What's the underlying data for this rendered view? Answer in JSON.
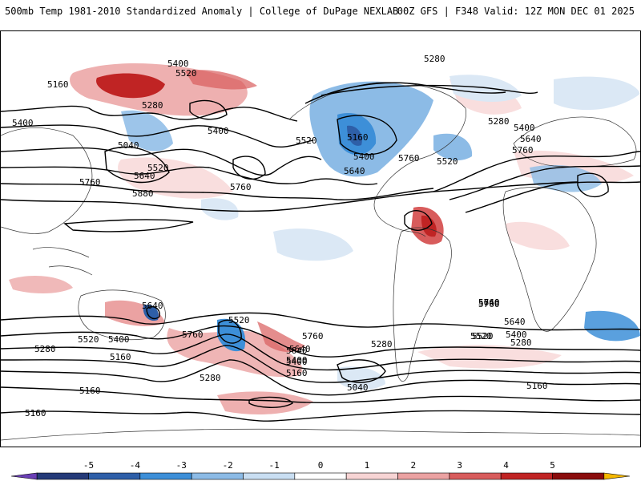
{
  "header": {
    "title_left": "500mb Temp 1981-2010 Standardized Anomaly | College of DuPage NEXLAB",
    "title_right": "00Z GFS | F348 Valid: 12Z MON DEC 01 2025"
  },
  "colorbar": {
    "ticks": [
      "-5",
      "-4",
      "-3",
      "-2",
      "-1",
      "0",
      "1",
      "2",
      "3",
      "4",
      "5"
    ],
    "colors": [
      "#6a3fb5",
      "#243a78",
      "#2e5fa8",
      "#3d8fd8",
      "#8cbbe6",
      "#c9def2",
      "#ffffff",
      "#f7d4d4",
      "#eba2a2",
      "#d85c5c",
      "#c02424",
      "#8a0c0c",
      "#f5b800"
    ]
  },
  "contours": {
    "labels": [
      "5400",
      "5520",
      "5160",
      "5280",
      "5400",
      "5040",
      "5520",
      "5400",
      "5640",
      "5760",
      "5880",
      "5760",
      "5280",
      "5520",
      "5160",
      "5400",
      "5640",
      "5760",
      "5520",
      "5280",
      "5400",
      "5640",
      "5760",
      "5640",
      "5760",
      "5400",
      "5520",
      "5280",
      "5160",
      "5640",
      "5760",
      "5520",
      "5400",
      "5640",
      "5760",
      "5520",
      "5280",
      "5400",
      "5640",
      "5280",
      "5160",
      "5040",
      "5160",
      "5760",
      "5640",
      "5400",
      "5520",
      "5280",
      "5160",
      "5160"
    ]
  },
  "colors": {
    "warm_light": "#f9dede",
    "warm_mid": "#eba2a2",
    "warm_strong": "#d85c5c",
    "warm_dark": "#c02424",
    "cool_light": "#dbe8f5",
    "cool_mid": "#8cbbe6",
    "cool_strong": "#3d8fd8",
    "cool_dark": "#2e5fa8"
  }
}
